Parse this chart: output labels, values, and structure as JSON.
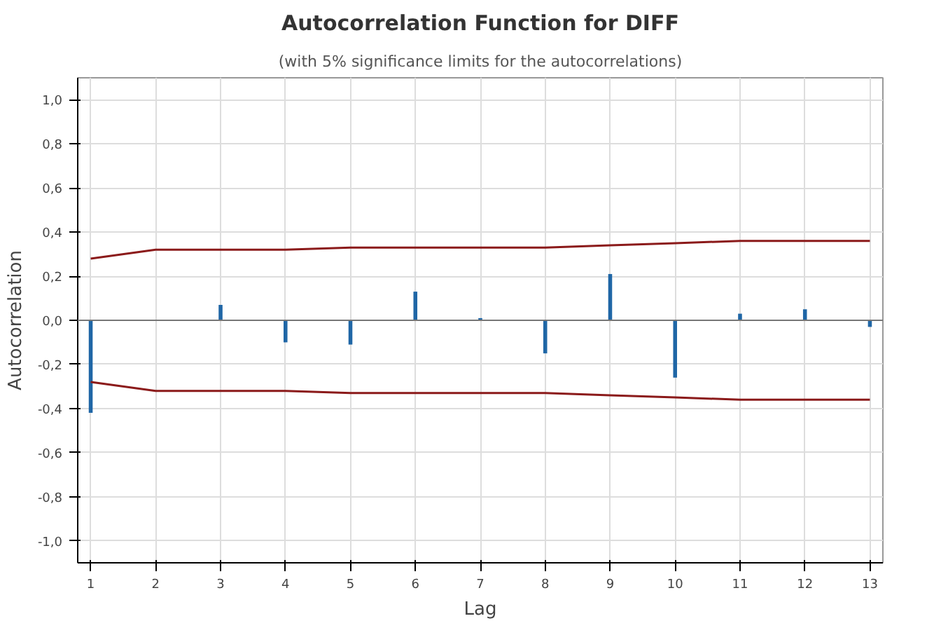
{
  "chart_data": {
    "type": "bar",
    "title": "Autocorrelation Function for DIFF",
    "subtitle": "(with 5% significance limits for the autocorrelations)",
    "xlabel": "Lag",
    "ylabel": "Autocorrelation",
    "x": [
      1,
      2,
      3,
      4,
      5,
      6,
      7,
      8,
      9,
      10,
      11,
      12,
      13
    ],
    "series": [
      {
        "color": "#1f66a6",
        "values": [
          -0.42,
          0.0,
          0.07,
          -0.1,
          -0.11,
          0.13,
          0.01,
          -0.15,
          0.21,
          -0.26,
          0.03,
          0.05,
          -0.03
        ]
      },
      {
        "type": "line",
        "color": "#8b1a1a",
        "values": [
          0.28,
          0.32,
          0.32,
          0.32,
          0.33,
          0.33,
          0.33,
          0.33,
          0.34,
          0.35,
          0.36,
          0.36,
          0.36
        ]
      },
      {
        "type": "line",
        "color": "#8b1a1a",
        "values": [
          -0.28,
          -0.32,
          -0.32,
          -0.32,
          -0.33,
          -0.33,
          -0.33,
          -0.33,
          -0.34,
          -0.35,
          -0.36,
          -0.36,
          -0.36
        ]
      }
    ],
    "xlim": [
      0.8,
      13.2
    ],
    "xticks": [
      1,
      2,
      3,
      4,
      5,
      6,
      7,
      8,
      9,
      10,
      11,
      12,
      13
    ],
    "ylim": [
      -1.1,
      1.1
    ],
    "yticks": [
      {
        "value": -1.0,
        "label": "-1,0"
      },
      {
        "value": -0.8,
        "label": "-0,8"
      },
      {
        "value": -0.6,
        "label": "-0,6"
      },
      {
        "value": -0.4,
        "label": "-0,4"
      },
      {
        "value": -0.2,
        "label": "-0,2"
      },
      {
        "value": 0.0,
        "label": "0,0"
      },
      {
        "value": 0.2,
        "label": "0,2"
      },
      {
        "value": 0.4,
        "label": "0,4"
      },
      {
        "value": 0.6,
        "label": "0,6"
      },
      {
        "value": 0.8,
        "label": "0,8"
      },
      {
        "value": 1.0,
        "label": "1,0"
      }
    ],
    "ref_lines": [
      {
        "axis": "y",
        "value": 0,
        "color": "#777777"
      }
    ],
    "grid": true,
    "line_style": "solid"
  }
}
